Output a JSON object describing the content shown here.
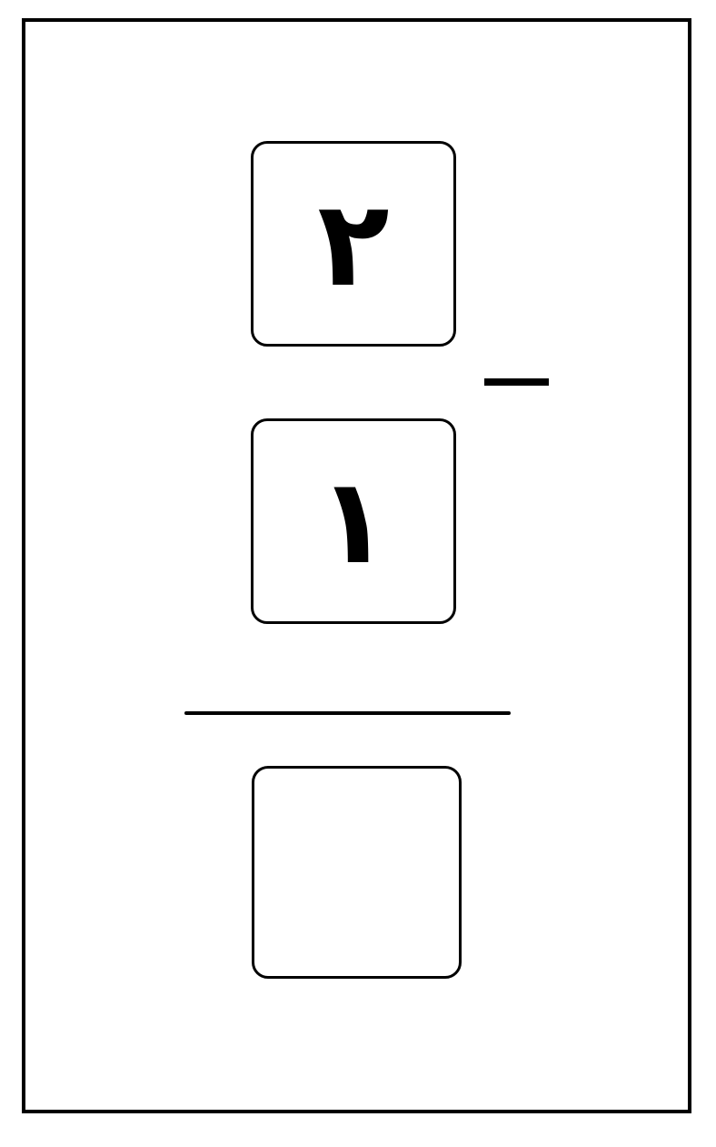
{
  "problem": {
    "top_digit": "٢",
    "bottom_digit": "١",
    "operator": "minus",
    "answer": ""
  },
  "colors": {
    "ink": "#000000",
    "paper": "#ffffff"
  }
}
